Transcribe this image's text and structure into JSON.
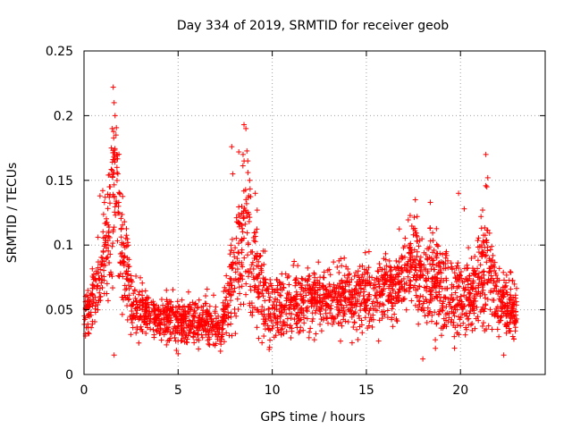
{
  "chart_data": {
    "type": "scatter",
    "title": "Day 334 of 2019, SRMTID for receiver geob",
    "xlabel": "GPS time / hours",
    "ylabel": "SRMTID / TECUs",
    "xlim": [
      0,
      24.5
    ],
    "ylim": [
      0,
      0.25
    ],
    "xticks": [
      0,
      5,
      10,
      15,
      20
    ],
    "yticks": [
      0,
      0.05,
      0.1,
      0.15,
      0.2,
      0.25
    ],
    "xtick_labels": [
      "0",
      "5",
      "10",
      "15",
      "20"
    ],
    "ytick_labels": [
      "0",
      "0.05",
      "0.1",
      "0.15",
      "0.2",
      "0.25"
    ],
    "grid": true,
    "marker": "+",
    "color": "#ff0000",
    "x_range_data": [
      0,
      23
    ],
    "envelope": [
      {
        "t": 0.0,
        "base": 0.048,
        "spread": 0.018
      },
      {
        "t": 0.6,
        "base": 0.06,
        "spread": 0.022
      },
      {
        "t": 1.0,
        "base": 0.085,
        "spread": 0.03
      },
      {
        "t": 1.6,
        "base": 0.15,
        "spread": 0.06
      },
      {
        "t": 2.1,
        "base": 0.095,
        "spread": 0.035
      },
      {
        "t": 2.6,
        "base": 0.055,
        "spread": 0.02
      },
      {
        "t": 3.5,
        "base": 0.045,
        "spread": 0.015
      },
      {
        "t": 5.0,
        "base": 0.042,
        "spread": 0.015
      },
      {
        "t": 6.5,
        "base": 0.04,
        "spread": 0.015
      },
      {
        "t": 7.3,
        "base": 0.035,
        "spread": 0.012
      },
      {
        "t": 7.9,
        "base": 0.075,
        "spread": 0.035
      },
      {
        "t": 8.6,
        "base": 0.12,
        "spread": 0.055
      },
      {
        "t": 9.2,
        "base": 0.07,
        "spread": 0.03
      },
      {
        "t": 10.0,
        "base": 0.045,
        "spread": 0.02
      },
      {
        "t": 11.0,
        "base": 0.055,
        "spread": 0.02
      },
      {
        "t": 13.0,
        "base": 0.058,
        "spread": 0.02
      },
      {
        "t": 15.0,
        "base": 0.06,
        "spread": 0.022
      },
      {
        "t": 16.5,
        "base": 0.065,
        "spread": 0.022
      },
      {
        "t": 17.5,
        "base": 0.085,
        "spread": 0.03
      },
      {
        "t": 18.5,
        "base": 0.075,
        "spread": 0.03
      },
      {
        "t": 19.5,
        "base": 0.06,
        "spread": 0.025
      },
      {
        "t": 20.5,
        "base": 0.06,
        "spread": 0.025
      },
      {
        "t": 21.4,
        "base": 0.085,
        "spread": 0.04
      },
      {
        "t": 22.0,
        "base": 0.055,
        "spread": 0.02
      },
      {
        "t": 23.0,
        "base": 0.05,
        "spread": 0.018
      }
    ],
    "peaks": [
      {
        "x": 1.55,
        "y": 0.222
      },
      {
        "x": 1.6,
        "y": 0.21
      },
      {
        "x": 1.65,
        "y": 0.2
      },
      {
        "x": 1.5,
        "y": 0.19
      },
      {
        "x": 1.7,
        "y": 0.185
      },
      {
        "x": 1.45,
        "y": 0.175
      },
      {
        "x": 1.75,
        "y": 0.16
      },
      {
        "x": 1.8,
        "y": 0.155
      },
      {
        "x": 1.35,
        "y": 0.145
      },
      {
        "x": 1.9,
        "y": 0.14
      },
      {
        "x": 0.85,
        "y": 0.138
      },
      {
        "x": 2.15,
        "y": 0.118
      },
      {
        "x": 8.5,
        "y": 0.193
      },
      {
        "x": 8.6,
        "y": 0.19
      },
      {
        "x": 8.45,
        "y": 0.17
      },
      {
        "x": 8.7,
        "y": 0.165
      },
      {
        "x": 7.85,
        "y": 0.176
      },
      {
        "x": 7.9,
        "y": 0.155
      },
      {
        "x": 8.8,
        "y": 0.15
      },
      {
        "x": 9.1,
        "y": 0.14
      },
      {
        "x": 9.2,
        "y": 0.127
      },
      {
        "x": 21.35,
        "y": 0.17
      },
      {
        "x": 21.45,
        "y": 0.152
      },
      {
        "x": 21.4,
        "y": 0.145
      },
      {
        "x": 19.9,
        "y": 0.14
      },
      {
        "x": 17.6,
        "y": 0.135
      },
      {
        "x": 18.4,
        "y": 0.133
      },
      {
        "x": 20.2,
        "y": 0.128
      },
      {
        "x": 1.6,
        "y": 0.015
      },
      {
        "x": 18.0,
        "y": 0.012
      },
      {
        "x": 22.3,
        "y": 0.015
      },
      {
        "x": 5.0,
        "y": 0.016
      },
      {
        "x": 7.25,
        "y": 0.018
      }
    ]
  }
}
